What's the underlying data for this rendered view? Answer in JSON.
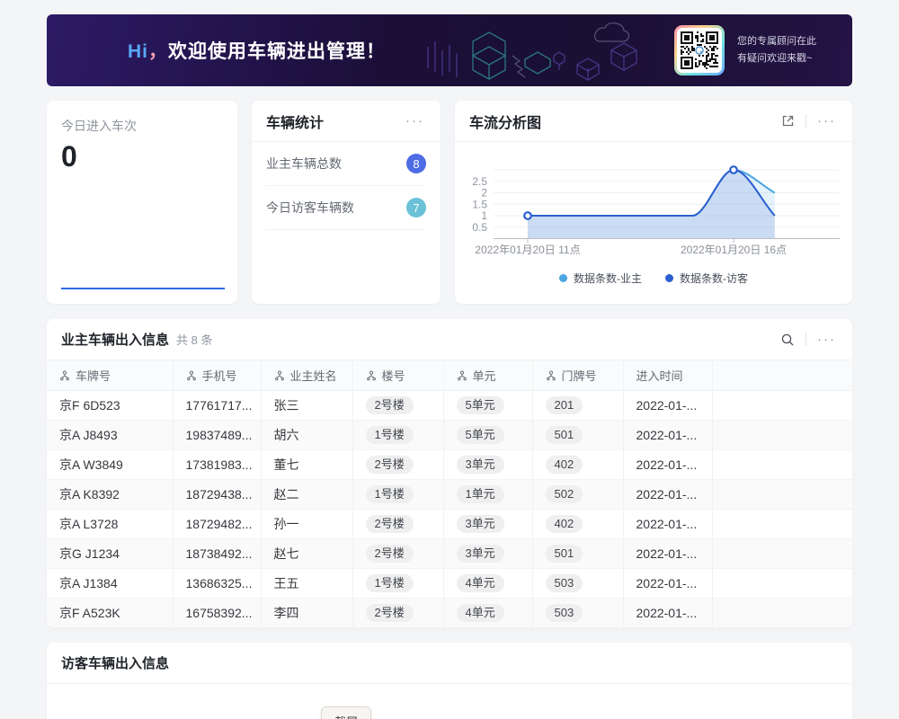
{
  "banner": {
    "greeting_hi": "Hi",
    "greeting_comma": "，",
    "greeting_text": "欢迎使用车辆进出管理！",
    "qr_note_line1": "您的专属顾问在此",
    "qr_note_line2": "有疑问欢迎来戳~"
  },
  "today_card": {
    "label": "今日进入车次",
    "value": "0",
    "accent_color": "#2e6be6"
  },
  "stats_card": {
    "title": "车辆统计",
    "rows": [
      {
        "label": "业主车辆总数",
        "value": "8",
        "badge_color": "#4e6ce4"
      },
      {
        "label": "今日访客车辆数",
        "value": "7",
        "badge_color": "#6bc1d8"
      }
    ]
  },
  "flow_card": {
    "title": "车流分析图"
  },
  "chart_data": {
    "type": "area",
    "title": "车流分析图",
    "x_hours": [
      11,
      12,
      13,
      14,
      15,
      16,
      17
    ],
    "x_tick_labels": [
      {
        "hour": 11,
        "label": "2022年01月20日 11点"
      },
      {
        "hour": 16,
        "label": "2022年01月20日 16点"
      }
    ],
    "series": [
      {
        "name": "数据条数-业主",
        "color": "#4aa4e0",
        "values": [
          1,
          1,
          1,
          1,
          1,
          3,
          2
        ]
      },
      {
        "name": "数据条数-访客",
        "color": "#2b5fce",
        "values": [
          1,
          1,
          1,
          1,
          1,
          3,
          1
        ]
      }
    ],
    "markers": [
      {
        "hour": 11,
        "value": 1
      },
      {
        "hour": 16,
        "value": 3
      }
    ],
    "y_ticks": [
      0.5,
      1,
      1.5,
      2,
      2.5
    ],
    "ylim": [
      0,
      3
    ],
    "grid": true,
    "legend_position": "bottom"
  },
  "owner_table": {
    "title": "业主车辆出入信息",
    "count_label": "共 8 条",
    "columns": [
      {
        "label": "车牌号",
        "type_icon": true
      },
      {
        "label": "手机号",
        "type_icon": true
      },
      {
        "label": "业主姓名",
        "type_icon": true
      },
      {
        "label": "楼号",
        "type_icon": true
      },
      {
        "label": "单元",
        "type_icon": true
      },
      {
        "label": "门牌号",
        "type_icon": true
      },
      {
        "label": "进入时间",
        "type_icon": false
      },
      {
        "label": "",
        "type_icon": false
      }
    ],
    "pill_columns": [
      3,
      4,
      5
    ],
    "rows": [
      [
        "京F 6D523",
        "17761717...",
        "张三",
        "2号楼",
        "5单元",
        "201",
        "2022-01-...",
        ""
      ],
      [
        "京A J8493",
        "19837489...",
        "胡六",
        "1号楼",
        "5单元",
        "501",
        "2022-01-...",
        ""
      ],
      [
        "京A W3849",
        "17381983...",
        "董七",
        "2号楼",
        "3单元",
        "402",
        "2022-01-...",
        ""
      ],
      [
        "京A K8392",
        "18729438...",
        "赵二",
        "1号楼",
        "1单元",
        "502",
        "2022-01-...",
        ""
      ],
      [
        "京A L3728",
        "18729482...",
        "孙一",
        "2号楼",
        "3单元",
        "402",
        "2022-01-...",
        ""
      ],
      [
        "京G J1234",
        "18738492...",
        "赵七",
        "2号楼",
        "3单元",
        "501",
        "2022-01-...",
        ""
      ],
      [
        "京A J1384",
        "13686325...",
        "王五",
        "1号楼",
        "4单元",
        "503",
        "2022-01-...",
        ""
      ],
      [
        "京F A523K",
        "16758392...",
        "李四",
        "2号楼",
        "4单元",
        "503",
        "2022-01-...",
        ""
      ]
    ]
  },
  "visitor_table": {
    "title": "访客车辆出入信息"
  },
  "floating_button": {
    "label": "截屏"
  },
  "icons": {
    "more": "···"
  }
}
